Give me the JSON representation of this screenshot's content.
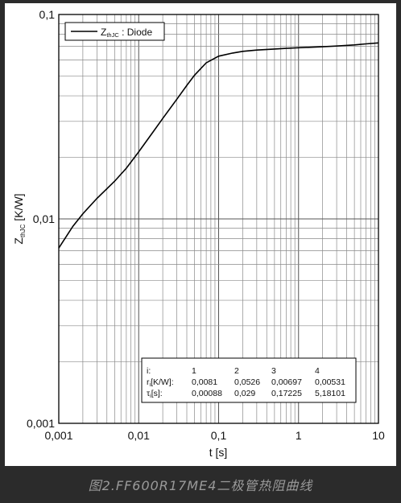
{
  "caption": "图2.FF600R17ME4二极管热阻曲线",
  "chart_data": {
    "type": "line",
    "xscale": "log",
    "yscale": "log",
    "xlim": [
      0.001,
      10
    ],
    "ylim": [
      0.001,
      0.1
    ],
    "xlabel": "t [s]",
    "ylabel": {
      "main": "Z",
      "sub": "thJC",
      "unit": " [K/W]"
    },
    "xticks": [
      "0,001",
      "0,01",
      "0,1",
      "1",
      "10"
    ],
    "yticks": [
      "0,001",
      "0,01",
      "0,1"
    ],
    "grid": true,
    "legend_position": "top-left",
    "series": [
      {
        "name": {
          "main": "Z",
          "sub": "thJC",
          "rest": " : Diode"
        },
        "color": "#000000",
        "points": [
          [
            0.001,
            0.0072
          ],
          [
            0.0015,
            0.0092
          ],
          [
            0.002,
            0.0106
          ],
          [
            0.003,
            0.0126
          ],
          [
            0.005,
            0.0153
          ],
          [
            0.007,
            0.0177
          ],
          [
            0.01,
            0.0213
          ],
          [
            0.015,
            0.0265
          ],
          [
            0.02,
            0.031
          ],
          [
            0.03,
            0.0385
          ],
          [
            0.04,
            0.045
          ],
          [
            0.05,
            0.0505
          ],
          [
            0.07,
            0.058
          ],
          [
            0.1,
            0.0625
          ],
          [
            0.15,
            0.0648
          ],
          [
            0.2,
            0.066
          ],
          [
            0.3,
            0.067
          ],
          [
            0.5,
            0.0678
          ],
          [
            0.7,
            0.0683
          ],
          [
            1,
            0.0688
          ],
          [
            2,
            0.0695
          ],
          [
            3,
            0.0701
          ],
          [
            5,
            0.071
          ],
          [
            7,
            0.0718
          ],
          [
            10,
            0.0726
          ]
        ]
      }
    ],
    "table": {
      "header": [
        "i:",
        "1",
        "2",
        "3",
        "4"
      ],
      "rows": [
        [
          "r_i[K/W]:",
          "0,0081",
          "0,0526",
          "0,00697",
          "0,00531"
        ],
        [
          "τ_i[s]:",
          "0,00088",
          "0,029",
          "0,17225",
          "5,18101"
        ]
      ]
    }
  }
}
